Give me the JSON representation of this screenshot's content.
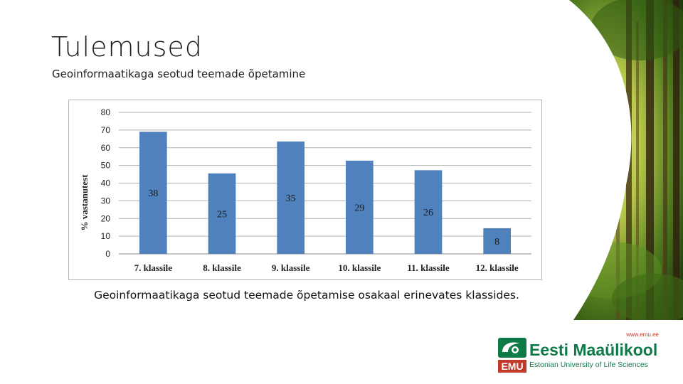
{
  "slide": {
    "title": "Tulemused",
    "subtitle": "Geoinformaatikaga seotud teemade õpetamine",
    "caption": "Geoinformaatikaga seotud teemade õpetamise osakaal erinevates klassides."
  },
  "logo": {
    "url": "www.emu.ee",
    "name": "Eesti Maaülikool",
    "tagline": "Estonian University of Life Sciences",
    "mark_text": "EMU"
  },
  "colors": {
    "bar": "#4f81bd",
    "brand_green": "#0e7a48",
    "brand_red": "#c0392b"
  },
  "chart_data": {
    "type": "bar",
    "categories": [
      "7. klassile",
      "8. klassile",
      "9. klassile",
      "10. klassile",
      "11. klassile",
      "12. klassile"
    ],
    "values": [
      69,
      45.5,
      63.5,
      52.7,
      47.3,
      14.5
    ],
    "data_labels": [
      "38",
      "25",
      "35",
      "29",
      "26",
      "8"
    ],
    "ylabel": "% vastanutest",
    "xlabel": "",
    "ylim": [
      0,
      80
    ],
    "yticks": [
      0,
      10,
      20,
      30,
      40,
      50,
      60,
      70,
      80
    ],
    "grid": true,
    "legend": "none"
  }
}
